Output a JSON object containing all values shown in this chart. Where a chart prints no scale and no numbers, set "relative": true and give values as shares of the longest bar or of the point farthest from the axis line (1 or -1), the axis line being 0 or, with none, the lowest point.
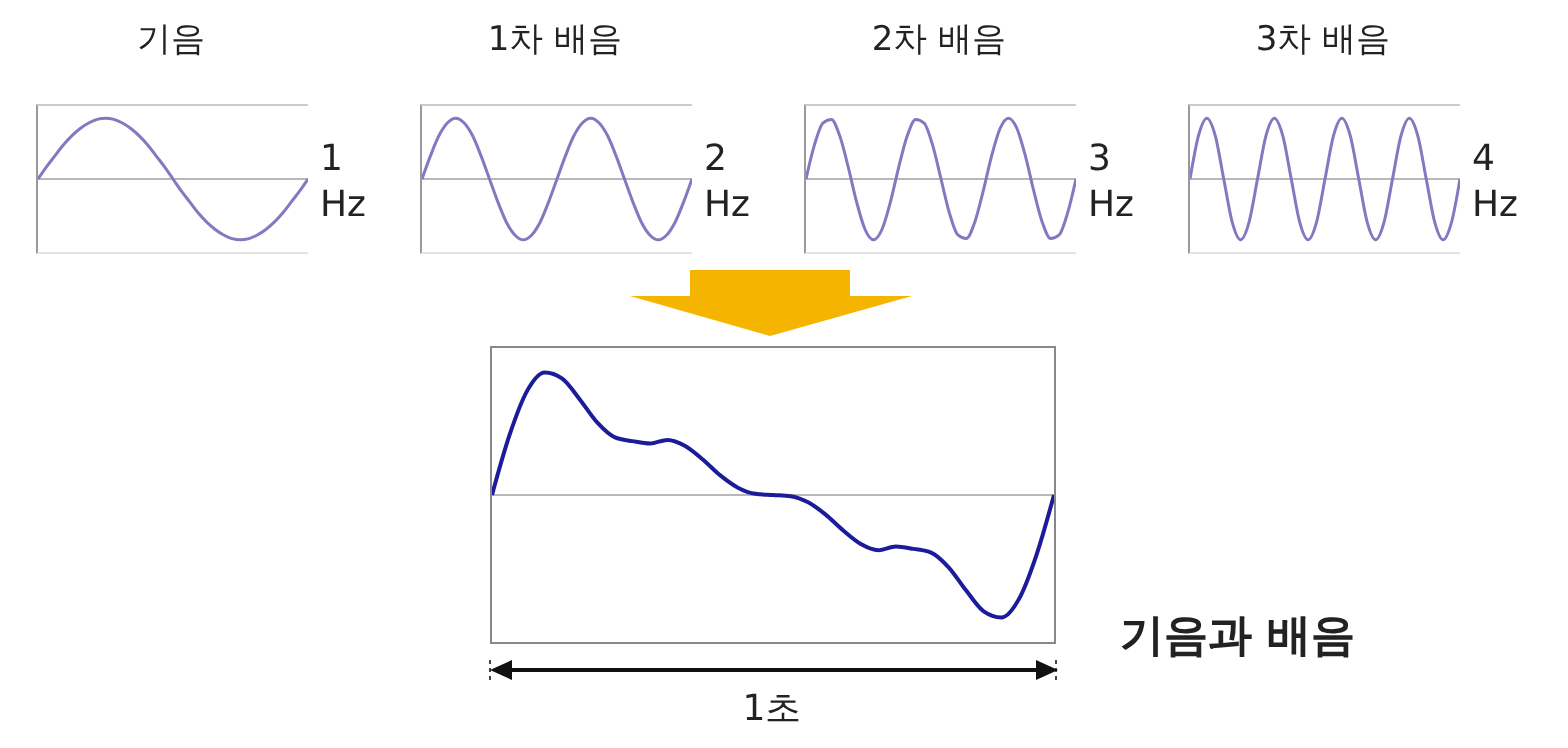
{
  "chart_data": [
    {
      "type": "line",
      "title": "기음",
      "relative": true,
      "annotations": [
        "1 Hz"
      ],
      "categories": [
        null,
        null,
        null,
        null,
        null,
        null,
        null,
        null,
        null,
        null,
        null,
        null,
        null,
        null,
        null,
        null,
        null,
        null,
        null,
        null,
        null,
        null,
        null,
        null,
        null,
        null,
        null,
        null,
        null,
        null,
        null,
        null,
        null
      ],
      "series": [
        {
          "color": "#8478c0",
          "values": [
            0,
            0.2,
            0.38,
            0.56,
            0.71,
            0.83,
            0.92,
            0.98,
            1,
            0.98,
            0.92,
            0.83,
            0.71,
            0.56,
            0.38,
            0.2,
            0,
            -0.2,
            -0.38,
            -0.56,
            -0.71,
            -0.83,
            -0.92,
            -0.98,
            -1,
            -0.98,
            -0.92,
            -0.83,
            -0.71,
            -0.56,
            -0.38,
            -0.2,
            0
          ]
        }
      ]
    },
    {
      "type": "line",
      "title": "1차 배음",
      "relative": true,
      "annotations": [
        "2 Hz"
      ],
      "categories": [
        null,
        null,
        null,
        null,
        null,
        null,
        null,
        null,
        null,
        null,
        null,
        null,
        null,
        null,
        null,
        null,
        null,
        null,
        null,
        null,
        null,
        null,
        null,
        null,
        null,
        null,
        null,
        null,
        null,
        null,
        null,
        null,
        null
      ],
      "series": [
        {
          "color": "#8478c0",
          "values": [
            0,
            0.38,
            0.71,
            0.92,
            1,
            0.92,
            0.71,
            0.38,
            0,
            -0.38,
            -0.71,
            -0.92,
            -1,
            -0.92,
            -0.71,
            -0.38,
            0,
            0.38,
            0.71,
            0.92,
            1,
            0.92,
            0.71,
            0.38,
            0,
            -0.38,
            -0.71,
            -0.92,
            -1,
            -0.92,
            -0.71,
            -0.38,
            0
          ]
        }
      ]
    },
    {
      "type": "line",
      "title": "2차 배음",
      "relative": true,
      "annotations": [
        "3 Hz"
      ],
      "categories": [
        null,
        null,
        null,
        null,
        null,
        null,
        null,
        null,
        null,
        null,
        null,
        null,
        null,
        null,
        null,
        null,
        null,
        null,
        null,
        null,
        null,
        null,
        null,
        null,
        null,
        null,
        null,
        null,
        null,
        null,
        null,
        null,
        null
      ],
      "series": [
        {
          "color": "#8478c0",
          "values": [
            0,
            0.56,
            0.92,
            0.98,
            0.71,
            0.2,
            -0.38,
            -0.83,
            -1,
            -0.83,
            -0.38,
            0.2,
            0.71,
            0.98,
            0.92,
            0.56,
            0,
            -0.56,
            -0.92,
            -0.98,
            -0.71,
            -0.2,
            0.38,
            0.83,
            1,
            0.83,
            0.38,
            -0.2,
            -0.71,
            -0.98,
            -0.92,
            -0.56,
            0
          ]
        }
      ]
    },
    {
      "type": "line",
      "title": "3차 배음",
      "relative": true,
      "annotations": [
        "4 Hz"
      ],
      "categories": [
        null,
        null,
        null,
        null,
        null,
        null,
        null,
        null,
        null,
        null,
        null,
        null,
        null,
        null,
        null,
        null,
        null,
        null,
        null,
        null,
        null,
        null,
        null,
        null,
        null,
        null,
        null,
        null,
        null,
        null,
        null,
        null,
        null
      ],
      "series": [
        {
          "color": "#8478c0",
          "values": [
            0,
            0.71,
            1,
            0.71,
            0,
            -0.71,
            -1,
            -0.71,
            0,
            0.71,
            1,
            0.71,
            0,
            -0.71,
            -1,
            -0.71,
            0,
            0.71,
            1,
            0.71,
            0,
            -0.71,
            -1,
            -0.71,
            0,
            0.71,
            1,
            0.71,
            0,
            -0.71,
            -1,
            -0.71,
            0
          ]
        }
      ]
    },
    {
      "type": "line",
      "relative": true,
      "annotations": [
        "1초",
        "기음과 배음"
      ],
      "categories": [
        null,
        null,
        null,
        null,
        null,
        null,
        null,
        null,
        null,
        null,
        null,
        null,
        null,
        null,
        null,
        null,
        null,
        null,
        null,
        null,
        null,
        null,
        null,
        null,
        null,
        null,
        null,
        null,
        null,
        null,
        null,
        null,
        null
      ],
      "series": [
        {
          "color": "#1c1c9a",
          "values": [
            0,
            0.49,
            0.85,
            1,
            0.95,
            0.78,
            0.59,
            0.47,
            0.44,
            0.42,
            0.45,
            0.4,
            0.29,
            0.16,
            0.06,
            0.01,
            0,
            -0.01,
            -0.06,
            -0.16,
            -0.29,
            -0.4,
            -0.45,
            -0.42,
            -0.44,
            -0.47,
            -0.59,
            -0.78,
            -0.95,
            -1,
            -0.85,
            -0.49,
            0
          ]
        }
      ]
    }
  ]
}
